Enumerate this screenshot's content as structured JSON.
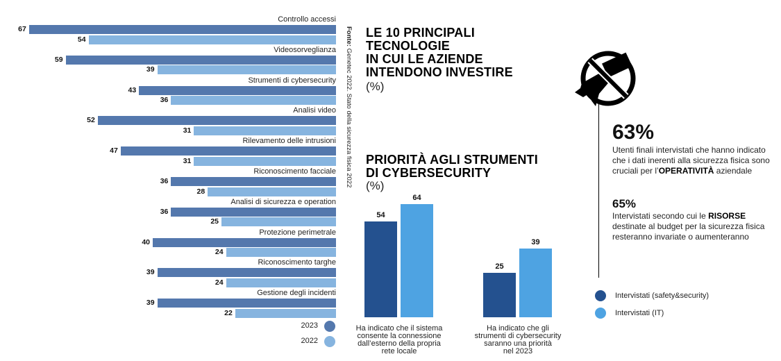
{
  "chart_data": [
    {
      "type": "bar",
      "orientation": "horizontal",
      "title": "LE 10 PRINCIPALI TECNOLOGIE IN CUI LE AZIENDE INTENDONO INVESTIRE",
      "unit": "(%)",
      "categories": [
        "Controllo accessi",
        "Videosorveglianza",
        "Strumenti di cybersecurity",
        "Analisi video",
        "Rilevamento delle intrusioni",
        "Riconoscimento facciale",
        "Analisi di sicurezza e operation",
        "Protezione perimetrale",
        "Riconoscimento targhe",
        "Gestione degli incidenti"
      ],
      "series": [
        {
          "name": "2023",
          "color": "#5478ad",
          "values": [
            67,
            59,
            43,
            52,
            47,
            36,
            36,
            40,
            39,
            39
          ]
        },
        {
          "name": "2022",
          "color": "#86b4df",
          "values": [
            54,
            39,
            36,
            31,
            31,
            28,
            25,
            24,
            24,
            22
          ]
        }
      ],
      "legend": "bottom-right",
      "grid": false
    },
    {
      "type": "bar",
      "orientation": "vertical",
      "title": "PRIORITÀ AGLI STRUMENTI DI CYBERSECURITY",
      "unit": "(%)",
      "categories": [
        "Ha indicato che il sistema consente la connessione dall’esterno della propria rete locale",
        "Ha indicato che gli strumenti di cybersecurity saranno una priorità nel 2023"
      ],
      "category_lines": [
        [
          "Ha indicato che il sistema",
          "consente la connessione",
          "dall’esterno della propria",
          "rete locale"
        ],
        [
          "Ha indicato che gli",
          "strumenti di cybersecurity",
          "saranno una priorità",
          "nel 2023"
        ]
      ],
      "series": [
        {
          "name": "Intervistati (safety&security)",
          "color": "#24518f",
          "values": [
            54,
            25
          ]
        },
        {
          "name": "Intervistati (IT)",
          "color": "#4ea3e2",
          "values": [
            64,
            39
          ]
        }
      ],
      "ylim": [
        0,
        70
      ],
      "legend": "right",
      "grid": false
    }
  ],
  "source": {
    "label": "Fonte:",
    "text": " Genetec 2022. Stato della sicurezza fisica 2022"
  },
  "titles": {
    "main_lines": [
      "LE 10 PRINCIPALI",
      "TECNOLOGIE",
      "IN CUI LE AZIENDE",
      "INTENDONO INVESTIRE"
    ],
    "main_unit": "(%)",
    "cyber_lines": [
      "PRIORITÀ AGLI STRUMENTI",
      "DI CYBERSECURITY"
    ],
    "cyber_unit": "(%)"
  },
  "stats": [
    {
      "value": "63%",
      "pre": "Utenti finali intervistati che hanno indicato che i dati inerenti alla sicurezza fisica sono cruciali per l’",
      "bold": "OPERATIVITÀ",
      "post": " aziendale"
    },
    {
      "value": "65%",
      "pre": "Intervistati secondo cui le ",
      "bold": "RISORSE",
      "post": " destinate al budget per la sicurezza fisica resteranno invariate o aumenteranno"
    }
  ],
  "icons": {
    "main": "no-camera-hand-icon"
  }
}
